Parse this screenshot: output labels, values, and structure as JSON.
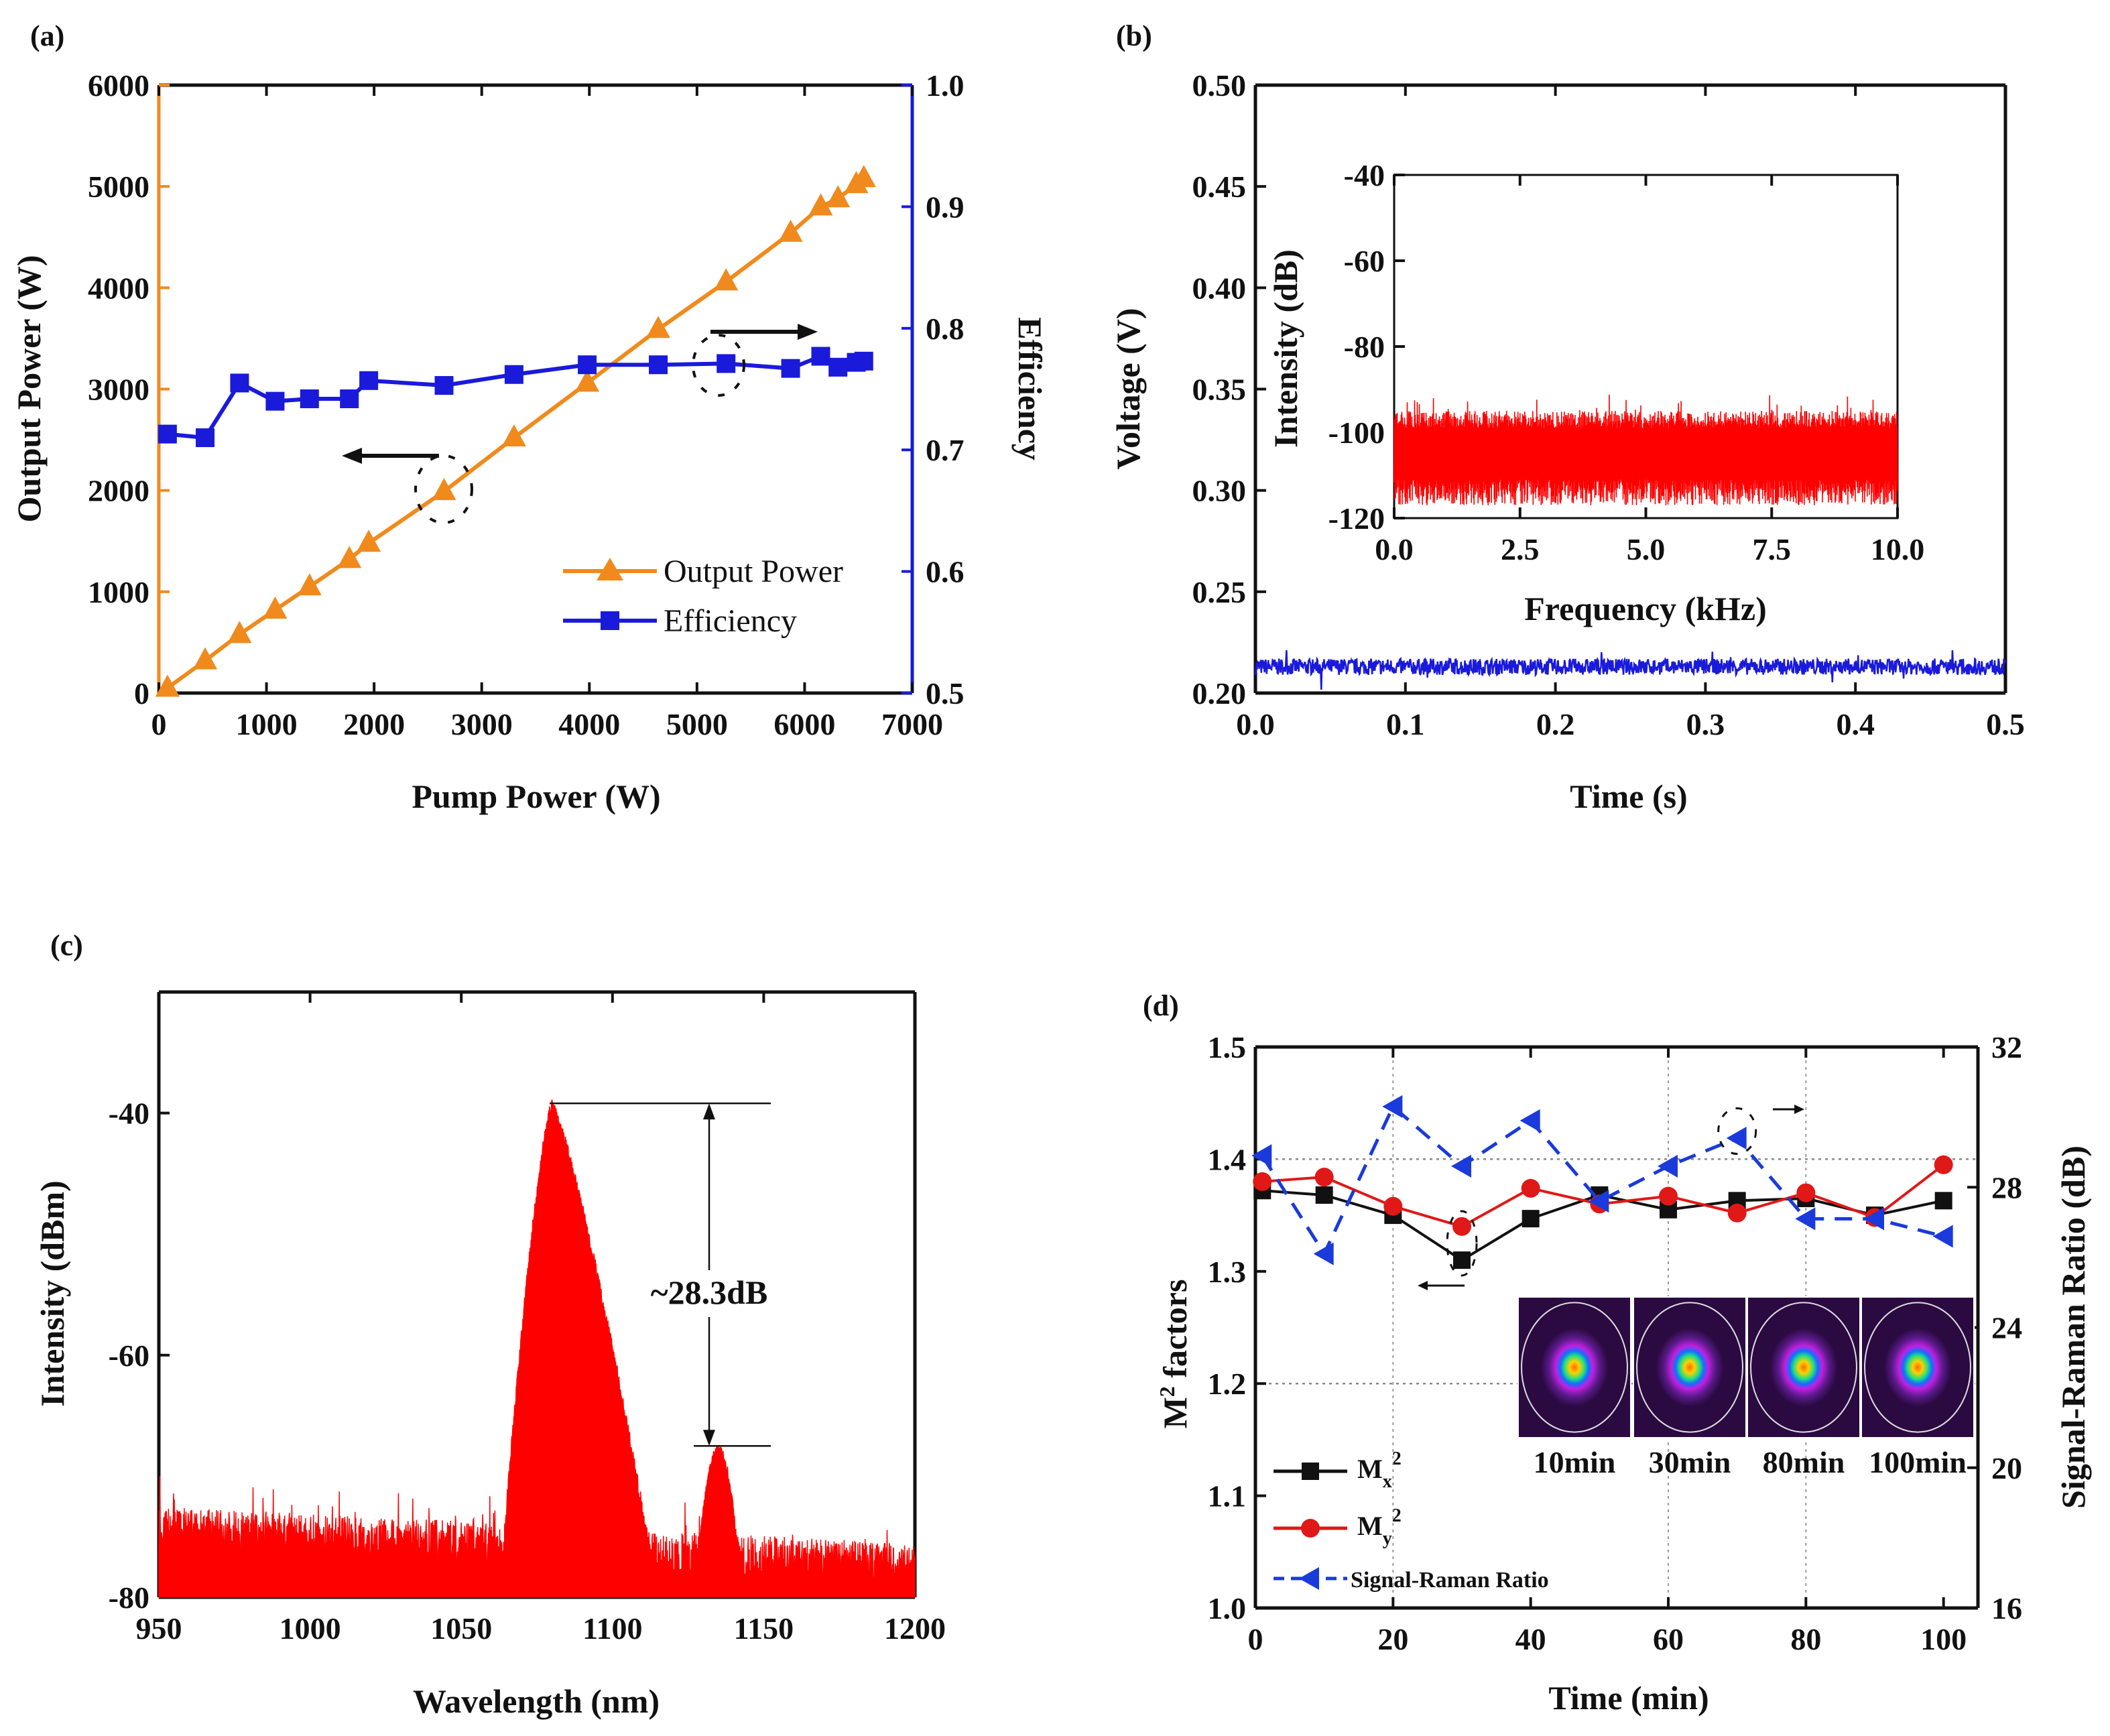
{
  "chart_data": [
    {
      "panel": "(a)",
      "type": "line",
      "xlabel": "Pump Power (W)",
      "ylabel": "Output Power (W)",
      "y2label": "Efficiency",
      "xlim": [
        0,
        7000
      ],
      "xticks": [
        0,
        1000,
        2000,
        3000,
        4000,
        5000,
        6000,
        7000
      ],
      "ylim": [
        0,
        6000
      ],
      "yticks": [
        0,
        1000,
        2000,
        3000,
        4000,
        5000,
        6000
      ],
      "y2lim": [
        0.5,
        1.0
      ],
      "y2ticks": [
        "0.5",
        "0.6",
        "0.7",
        "0.8",
        "0.9",
        "1.0"
      ],
      "x": [
        80,
        430,
        750,
        1080,
        1400,
        1770,
        1950,
        2650,
        3300,
        3980,
        4640,
        5270,
        5870,
        6150,
        6310,
        6480,
        6550
      ],
      "series": [
        {
          "name": "Output Power",
          "axis": "left",
          "color": "#f08a1c",
          "marker": "triangle",
          "values": [
            50,
            320,
            580,
            820,
            1050,
            1320,
            1480,
            1990,
            2520,
            3060,
            3590,
            4060,
            4540,
            4800,
            4880,
            5020,
            5080
          ]
        },
        {
          "name": "Efficiency",
          "axis": "right",
          "color": "#1a1adb",
          "marker": "square",
          "values": [
            0.713,
            0.71,
            0.755,
            0.74,
            0.742,
            0.742,
            0.757,
            0.753,
            0.762,
            0.77,
            0.77,
            0.771,
            0.767,
            0.777,
            0.768,
            0.772,
            0.773
          ]
        }
      ]
    },
    {
      "panel": "(b)",
      "type": "line",
      "xlabel": "Time (s)",
      "ylabel": "Voltage (V)",
      "xlim": [
        0,
        0.5
      ],
      "xticks": [
        "0.0",
        "0.1",
        "0.2",
        "0.3",
        "0.4",
        "0.5"
      ],
      "ylim": [
        0.2,
        0.5
      ],
      "yticks": [
        "0.20",
        "0.25",
        "0.30",
        "0.35",
        "0.40",
        "0.45",
        "0.50"
      ],
      "series": [
        {
          "name": "Voltage",
          "color": "#1a1adb",
          "mean": 0.213,
          "noise": 0.004
        }
      ],
      "inset": {
        "xlabel": "Frequency (kHz)",
        "ylabel": "Intensity (dB)",
        "xlim": [
          0,
          10
        ],
        "xticks": [
          "0.0",
          "2.5",
          "5.0",
          "7.5",
          "10.0"
        ],
        "ylim": [
          -120,
          -40
        ],
        "yticks": [
          "-120",
          "-100",
          "-80",
          "-60",
          "-40"
        ],
        "series": [
          {
            "name": "Intensity",
            "color": "#ff0000",
            "upper": -95,
            "lower": -117
          }
        ]
      }
    },
    {
      "panel": "(c)",
      "type": "line",
      "xlabel": "Wavelength (nm)",
      "ylabel": "Intensity (dBm)",
      "xlim": [
        950,
        1200
      ],
      "xticks": [
        950,
        1000,
        1050,
        1100,
        1150,
        1200
      ],
      "ylim": [
        -80,
        -30
      ],
      "yticks": [
        -80,
        -60,
        -40
      ],
      "series": [
        {
          "name": "Spectrum",
          "color": "#ff0000",
          "baseline": -76,
          "peaks": [
            {
              "wavelength": 1080,
              "intensity": -39.5
            },
            {
              "wavelength": 1135,
              "intensity": -67.8
            }
          ]
        }
      ],
      "annotation": "~28.3dB"
    },
    {
      "panel": "(d)",
      "type": "line",
      "xlabel": "Time (min)",
      "ylabel": "M² factors",
      "ylabel_main": "M",
      "ylabel_sup": "2",
      "ylabel_rest": " factors",
      "y2label": "Signal-Raman Ratio (dB)",
      "xlim": [
        0,
        105
      ],
      "xticks": [
        0,
        20,
        40,
        60,
        80,
        100
      ],
      "ylim": [
        1.0,
        1.5
      ],
      "yticks": [
        "1.0",
        "1.1",
        "1.2",
        "1.3",
        "1.4",
        "1.5"
      ],
      "y2lim": [
        16,
        32
      ],
      "y2ticks": [
        16,
        20,
        24,
        28,
        32
      ],
      "x": [
        1,
        10,
        20,
        30,
        40,
        50,
        60,
        70,
        80,
        90,
        100
      ],
      "series": [
        {
          "name": "Mx2",
          "label_main": "M",
          "label_sub": "x",
          "label_sup": "2",
          "axis": "left",
          "color": "#111111",
          "marker": "square",
          "values": [
            1.372,
            1.368,
            1.35,
            1.31,
            1.347,
            1.368,
            1.355,
            1.363,
            1.365,
            1.35,
            1.363
          ]
        },
        {
          "name": "My2",
          "label_main": "M",
          "label_sub": "y",
          "label_sup": "2",
          "axis": "left",
          "color": "#e01818",
          "marker": "circle",
          "values": [
            1.38,
            1.384,
            1.358,
            1.34,
            1.374,
            1.36,
            1.367,
            1.352,
            1.37,
            1.348,
            1.395
          ]
        },
        {
          "name": "Signal-Raman Ratio",
          "axis": "right",
          "color": "#1a3adb",
          "marker": "left-triangle",
          "dashed": true,
          "values": [
            28.9,
            26.1,
            30.3,
            28.6,
            29.9,
            27.6,
            28.6,
            29.4,
            27.1,
            27.1,
            26.6
          ]
        }
      ],
      "beam_profiles": [
        "10min",
        "30min",
        "80min",
        "100min"
      ]
    }
  ]
}
